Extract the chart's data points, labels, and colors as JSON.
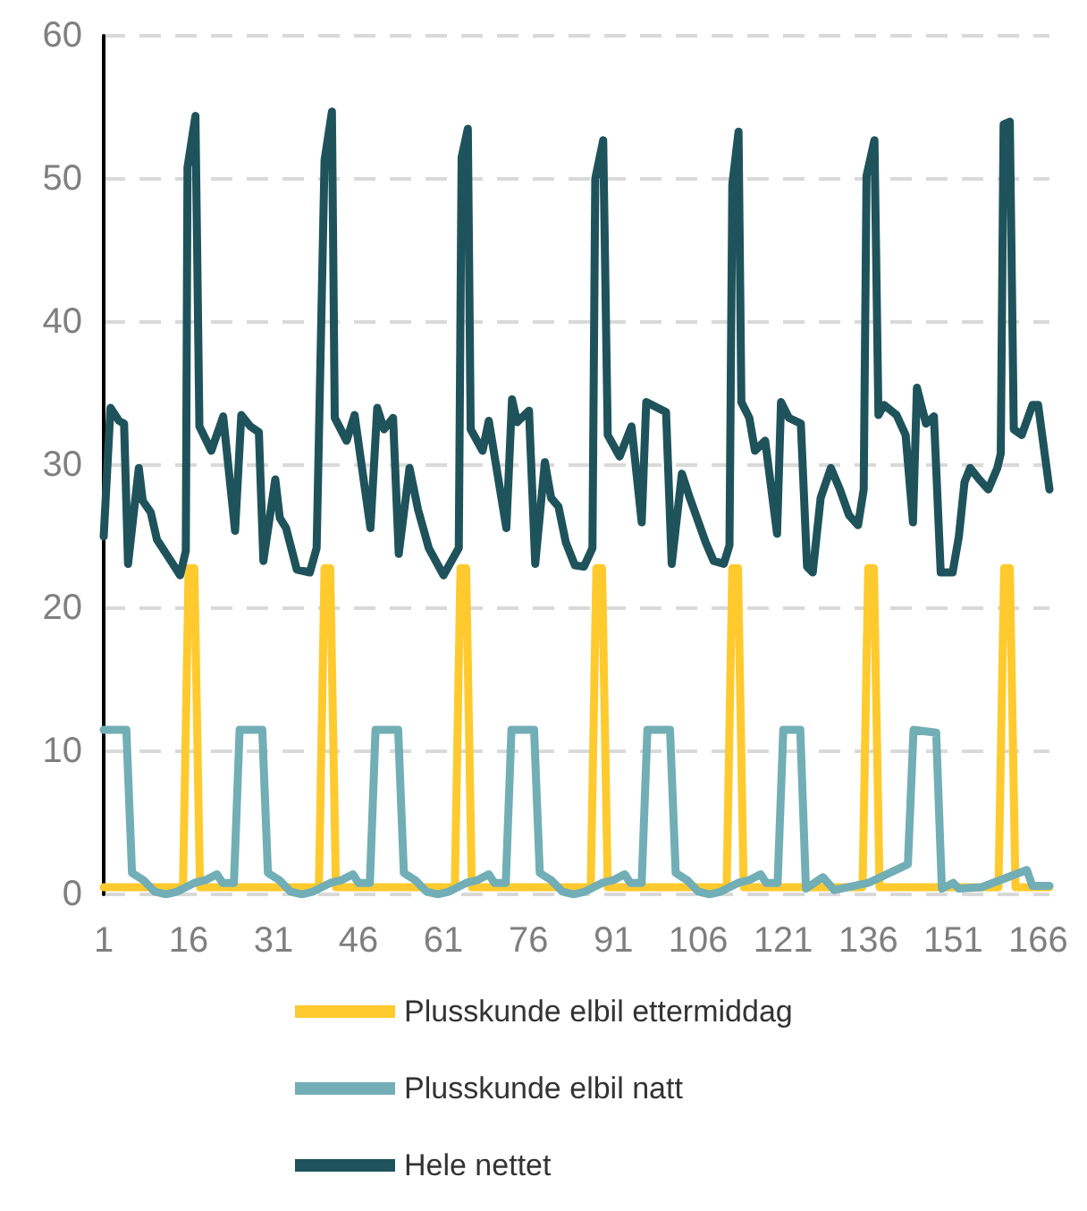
{
  "chart_data": {
    "type": "line",
    "xlim": [
      1,
      168
    ],
    "xticks": [
      1,
      16,
      31,
      46,
      61,
      76,
      91,
      106,
      121,
      136,
      151,
      166
    ],
    "ylim": [
      0,
      60
    ],
    "yticks": [
      0,
      10,
      20,
      30,
      40,
      50,
      60
    ],
    "grid": "y",
    "legend": "bottom",
    "marker": "none",
    "line_style": "solid",
    "series": [
      {
        "name": "Plusskunde elbil ettermiddag",
        "color": "#ffca2e",
        "x": [
          1,
          15,
          16,
          17,
          18,
          39,
          40,
          41,
          42,
          63,
          64,
          65,
          66,
          87,
          88,
          89,
          90,
          111,
          112,
          113,
          114,
          135,
          136,
          137,
          138,
          159,
          160,
          161,
          162,
          168
        ],
        "values": [
          0.5,
          0.5,
          22.8,
          22.8,
          0.5,
          0.5,
          22.8,
          22.8,
          0.5,
          0.5,
          22.8,
          22.8,
          0.5,
          0.5,
          22.8,
          22.8,
          0.5,
          0.5,
          22.8,
          22.8,
          0.5,
          0.5,
          22.8,
          22.8,
          0.5,
          0.5,
          22.8,
          22.8,
          0.5,
          0.5
        ]
      },
      {
        "name": "Plusskunde elbil natt",
        "color": "#72aeb5",
        "x": [
          1,
          5,
          6,
          8,
          10,
          12,
          14,
          17,
          19,
          21,
          22,
          24,
          25,
          29,
          30,
          32,
          34,
          36,
          38,
          41,
          43,
          45,
          46,
          48,
          49,
          53,
          54,
          56,
          58,
          60,
          62,
          65,
          67,
          69,
          70,
          72,
          73,
          77,
          78,
          80,
          82,
          84,
          86,
          89,
          91,
          93,
          94,
          96,
          97,
          101,
          102,
          104,
          106,
          108,
          110,
          113,
          115,
          117,
          118,
          120,
          121,
          124,
          125,
          128,
          130,
          136,
          143,
          144,
          148,
          149,
          151,
          152,
          156,
          164,
          165,
          168
        ],
        "values": [
          11.5,
          11.5,
          1.5,
          1.0,
          0.2,
          0,
          0.2,
          0.8,
          1.0,
          1.4,
          0.8,
          0.8,
          11.5,
          11.5,
          1.5,
          1.0,
          0.2,
          0,
          0.2,
          0.8,
          1.0,
          1.4,
          0.8,
          0.8,
          11.5,
          11.5,
          1.5,
          1.0,
          0.2,
          0,
          0.2,
          0.8,
          1.0,
          1.4,
          0.8,
          0.8,
          11.5,
          11.5,
          1.5,
          1.0,
          0.2,
          0,
          0.2,
          0.8,
          1.0,
          1.4,
          0.8,
          0.8,
          11.5,
          11.5,
          1.5,
          1.0,
          0.2,
          0,
          0.2,
          0.8,
          1.0,
          1.4,
          0.8,
          0.8,
          11.5,
          11.5,
          0.4,
          1.2,
          0.3,
          0.8,
          2.1,
          11.5,
          11.3,
          0.4,
          0.8,
          0.4,
          0.5,
          1.7,
          0.6,
          0.6
        ]
      },
      {
        "name": "Hele nettet",
        "color": "#1f535b",
        "x": [
          1,
          2.2,
          3.7,
          4.6,
          5.3,
          7.2,
          7.9,
          9.3,
          10.4,
          12.7,
          14.5,
          15.5,
          15.8,
          17.2,
          17.9,
          20,
          22.1,
          24.2,
          25.3,
          26.9,
          28.4,
          29.2,
          31.3,
          32.1,
          33.2,
          35.1,
          37.4,
          38.6,
          40,
          41.3,
          41.8,
          43.9,
          45.3,
          48.1,
          49.3,
          50.5,
          52.1,
          53.1,
          55,
          56.5,
          58.4,
          61,
          63.7,
          64.2,
          65.3,
          65.8,
          67.9,
          69,
          72.1,
          73.1,
          74,
          76.1,
          77.2,
          78.9,
          80,
          81.3,
          82.6,
          84.2,
          85.8,
          87.3,
          87.8,
          89.2,
          90,
          92.1,
          94.2,
          96,
          96.8,
          100.3,
          101.3,
          103.1,
          104.5,
          107.3,
          108.7,
          110.5,
          111.5,
          112,
          113.1,
          113.6,
          115,
          116,
          117.8,
          119.9,
          120.6,
          122,
          124.1,
          125.2,
          126.2,
          127.6,
          129.4,
          131,
          132.6,
          134.2,
          135.2,
          135.7,
          137.1,
          137.8,
          138.8,
          141,
          142.6,
          143.9,
          144.6,
          146.2,
          147.6,
          148.8,
          150.9,
          152,
          153,
          154,
          155.6,
          157.2,
          158.8,
          159.4,
          159.9,
          161,
          161.7,
          163.1,
          165,
          166,
          168
        ],
        "values": [
          25,
          34,
          33.1,
          32.9,
          23.1,
          29.8,
          27.5,
          26.7,
          24.8,
          23.4,
          22.3,
          24,
          50.8,
          54.4,
          32.7,
          31,
          33.4,
          25.4,
          33.5,
          32.7,
          32.3,
          23.3,
          29,
          26.3,
          25.6,
          22.7,
          22.5,
          24.2,
          51.3,
          54.7,
          33.3,
          31.7,
          33.5,
          25.6,
          34,
          32.5,
          33.3,
          23.8,
          29.8,
          26.9,
          24.2,
          22.3,
          24.2,
          51.5,
          53.5,
          32.5,
          31,
          33.1,
          25.6,
          34.6,
          33,
          33.8,
          23.1,
          30.2,
          27.7,
          27.1,
          24.6,
          23,
          22.9,
          24.2,
          50,
          52.7,
          32.1,
          30.6,
          32.7,
          26,
          34.4,
          33.7,
          23.1,
          29.4,
          27.7,
          24.6,
          23.3,
          23.1,
          24.4,
          49.6,
          53.3,
          34.4,
          33.3,
          31,
          31.7,
          25.2,
          34.4,
          33.3,
          32.9,
          22.9,
          22.5,
          27.7,
          29.8,
          28.3,
          26.5,
          25.8,
          28.3,
          50.2,
          52.7,
          33.5,
          34.2,
          33.5,
          32.1,
          26,
          35.4,
          32.9,
          33.4,
          22.5,
          22.5,
          25,
          28.8,
          29.8,
          29,
          28.3,
          29.8,
          30.8,
          53.8,
          54,
          32.5,
          32.1,
          34.2,
          34.2,
          28.3
        ]
      }
    ]
  }
}
